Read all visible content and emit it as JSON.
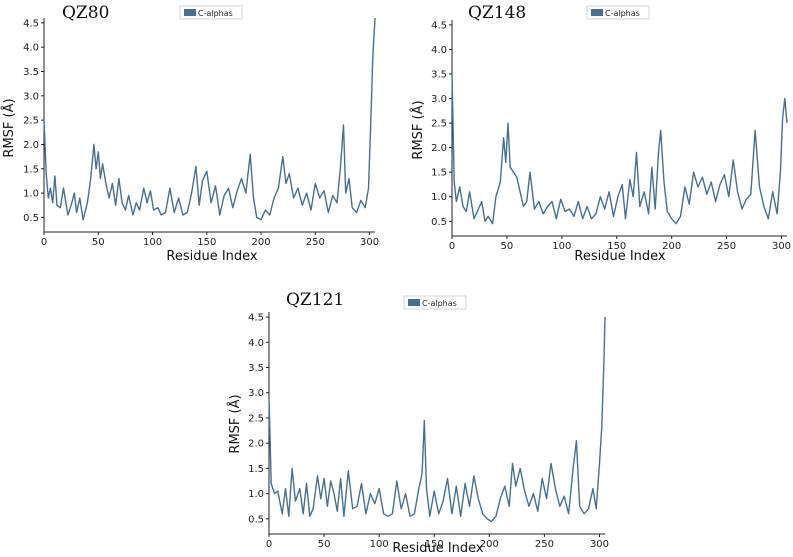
{
  "chart_data": [
    {
      "type": "line",
      "title": "QZ80",
      "xlabel": "Residue Index",
      "ylabel": "RMSF (Å)",
      "xlim": [
        0,
        305
      ],
      "ylim": [
        0.2,
        4.6
      ],
      "xticks": [
        0,
        50,
        100,
        150,
        200,
        250,
        300
      ],
      "yticks": [
        0.5,
        1.0,
        1.5,
        2.0,
        2.5,
        3.0,
        3.5,
        4.0,
        4.5
      ],
      "legend": "top-center",
      "grid": false,
      "series": [
        {
          "name": "C-alphas",
          "color": "#46708f",
          "x": [
            0,
            2,
            4,
            6,
            8,
            10,
            12,
            15,
            18,
            22,
            25,
            28,
            30,
            33,
            36,
            40,
            43,
            46,
            48,
            50,
            52,
            54,
            57,
            60,
            63,
            66,
            69,
            72,
            75,
            78,
            82,
            85,
            88,
            92,
            95,
            98,
            101,
            105,
            108,
            112,
            116,
            120,
            124,
            128,
            132,
            136,
            140,
            143,
            146,
            150,
            154,
            158,
            162,
            166,
            170,
            174,
            178,
            182,
            186,
            190,
            193,
            196,
            200,
            204,
            208,
            212,
            216,
            220,
            223,
            226,
            230,
            234,
            238,
            242,
            246,
            250,
            254,
            258,
            262,
            266,
            270,
            273,
            276,
            278,
            281,
            284,
            288,
            292,
            296,
            299,
            301,
            303,
            305
          ],
          "y": [
            2.5,
            1.4,
            0.9,
            1.1,
            0.8,
            1.35,
            0.75,
            0.7,
            1.1,
            0.55,
            0.75,
            1.0,
            0.6,
            0.9,
            0.45,
            0.8,
            1.3,
            2.0,
            1.5,
            1.85,
            1.3,
            1.6,
            1.2,
            0.9,
            1.2,
            0.75,
            1.3,
            0.8,
            0.65,
            0.95,
            0.55,
            0.8,
            0.65,
            1.1,
            0.8,
            1.05,
            0.65,
            0.7,
            0.55,
            0.6,
            1.1,
            0.6,
            0.9,
            0.55,
            0.6,
            1.0,
            1.55,
            0.75,
            1.25,
            1.45,
            0.8,
            1.15,
            0.55,
            0.95,
            1.1,
            0.7,
            1.05,
            1.3,
            1.0,
            1.8,
            0.9,
            0.5,
            0.45,
            0.65,
            0.55,
            0.9,
            1.1,
            1.75,
            1.2,
            1.4,
            0.9,
            1.1,
            0.75,
            1.0,
            0.65,
            1.2,
            0.9,
            1.05,
            0.6,
            0.95,
            0.8,
            1.5,
            2.4,
            1.0,
            1.3,
            0.7,
            0.6,
            0.85,
            0.7,
            1.1,
            2.4,
            3.8,
            4.6
          ]
        }
      ]
    },
    {
      "type": "line",
      "title": "QZ148",
      "xlabel": "Residue Index",
      "ylabel": "RMSF (Å)",
      "xlim": [
        0,
        305
      ],
      "ylim": [
        0.2,
        4.6
      ],
      "xticks": [
        0,
        50,
        100,
        150,
        200,
        250,
        300
      ],
      "yticks": [
        0.5,
        1.0,
        1.5,
        2.0,
        2.5,
        3.0,
        3.5,
        4.0,
        4.5
      ],
      "legend": "top-center",
      "grid": false,
      "series": [
        {
          "name": "C-alphas",
          "color": "#46708f",
          "x": [
            0,
            2,
            4,
            7,
            10,
            13,
            16,
            20,
            23,
            27,
            30,
            33,
            37,
            40,
            44,
            47,
            49,
            51,
            53,
            56,
            59,
            62,
            65,
            68,
            71,
            75,
            79,
            83,
            87,
            91,
            95,
            99,
            103,
            107,
            111,
            115,
            119,
            123,
            127,
            131,
            135,
            139,
            143,
            147,
            151,
            155,
            158,
            162,
            165,
            168,
            171,
            175,
            179,
            182,
            185,
            188,
            190,
            193,
            196,
            200,
            204,
            208,
            212,
            216,
            220,
            224,
            228,
            232,
            236,
            240,
            244,
            248,
            252,
            256,
            260,
            264,
            268,
            272,
            276,
            280,
            284,
            288,
            292,
            296,
            299,
            301,
            303,
            305
          ],
          "y": [
            3.5,
            1.3,
            0.9,
            1.2,
            0.8,
            0.7,
            1.1,
            0.55,
            0.7,
            0.9,
            0.5,
            0.6,
            0.45,
            1.0,
            1.3,
            2.2,
            1.7,
            2.5,
            1.6,
            1.5,
            1.4,
            1.1,
            0.8,
            0.9,
            1.5,
            0.75,
            0.9,
            0.65,
            0.8,
            0.9,
            0.55,
            0.95,
            0.7,
            0.75,
            0.6,
            0.9,
            0.55,
            0.8,
            0.55,
            0.65,
            1.0,
            0.75,
            1.1,
            0.6,
            1.0,
            1.25,
            0.55,
            1.35,
            1.0,
            1.9,
            0.8,
            1.1,
            0.65,
            1.6,
            0.75,
            1.9,
            2.35,
            1.3,
            0.7,
            0.55,
            0.45,
            0.6,
            1.2,
            0.85,
            1.5,
            1.2,
            1.4,
            1.05,
            1.3,
            0.9,
            1.25,
            1.45,
            1.0,
            1.75,
            1.1,
            0.75,
            0.95,
            1.05,
            2.35,
            1.2,
            0.8,
            0.55,
            1.1,
            0.65,
            1.5,
            2.6,
            3.0,
            2.5
          ]
        }
      ]
    },
    {
      "type": "line",
      "title": "QZ121",
      "xlabel": "Residue Index",
      "ylabel": "RMSF (Å)",
      "xlim": [
        0,
        305
      ],
      "ylim": [
        0.2,
        4.6
      ],
      "xticks": [
        0,
        50,
        100,
        150,
        200,
        250,
        300
      ],
      "yticks": [
        0.5,
        1.0,
        1.5,
        2.0,
        2.5,
        3.0,
        3.5,
        4.0,
        4.5
      ],
      "legend": "top-center",
      "grid": false,
      "series": [
        {
          "name": "C-alphas",
          "color": "#46708f",
          "x": [
            0,
            2,
            5,
            8,
            12,
            15,
            18,
            21,
            24,
            28,
            31,
            34,
            37,
            40,
            44,
            47,
            50,
            53,
            56,
            59,
            62,
            65,
            68,
            72,
            76,
            80,
            84,
            88,
            92,
            96,
            100,
            104,
            108,
            112,
            116,
            120,
            124,
            128,
            132,
            136,
            139,
            141,
            143,
            146,
            150,
            154,
            158,
            162,
            166,
            170,
            174,
            178,
            182,
            186,
            190,
            194,
            198,
            202,
            206,
            210,
            214,
            218,
            221,
            224,
            228,
            232,
            236,
            240,
            244,
            248,
            252,
            256,
            260,
            264,
            268,
            272,
            276,
            279,
            282,
            286,
            290,
            294,
            297,
            300,
            302,
            304,
            305
          ],
          "y": [
            2.9,
            1.2,
            1.0,
            1.05,
            0.6,
            1.1,
            0.55,
            1.5,
            0.85,
            1.1,
            0.6,
            1.2,
            0.55,
            0.7,
            1.35,
            0.9,
            1.3,
            0.75,
            1.25,
            1.0,
            0.65,
            1.3,
            0.55,
            1.45,
            0.7,
            0.75,
            1.2,
            0.6,
            1.0,
            0.8,
            1.1,
            0.6,
            0.55,
            0.6,
            1.25,
            0.7,
            1.0,
            0.55,
            0.6,
            1.1,
            1.4,
            2.45,
            1.1,
            0.55,
            1.05,
            0.6,
            0.85,
            1.3,
            0.6,
            1.15,
            0.55,
            1.2,
            0.75,
            1.35,
            0.9,
            0.6,
            0.5,
            0.45,
            0.55,
            0.9,
            1.15,
            0.75,
            1.6,
            1.15,
            1.5,
            1.05,
            0.75,
            1.0,
            0.65,
            1.3,
            0.9,
            1.6,
            1.1,
            0.75,
            0.95,
            0.6,
            1.5,
            2.05,
            0.75,
            0.6,
            0.7,
            1.1,
            0.7,
            1.6,
            2.3,
            3.6,
            4.5
          ]
        }
      ]
    }
  ]
}
